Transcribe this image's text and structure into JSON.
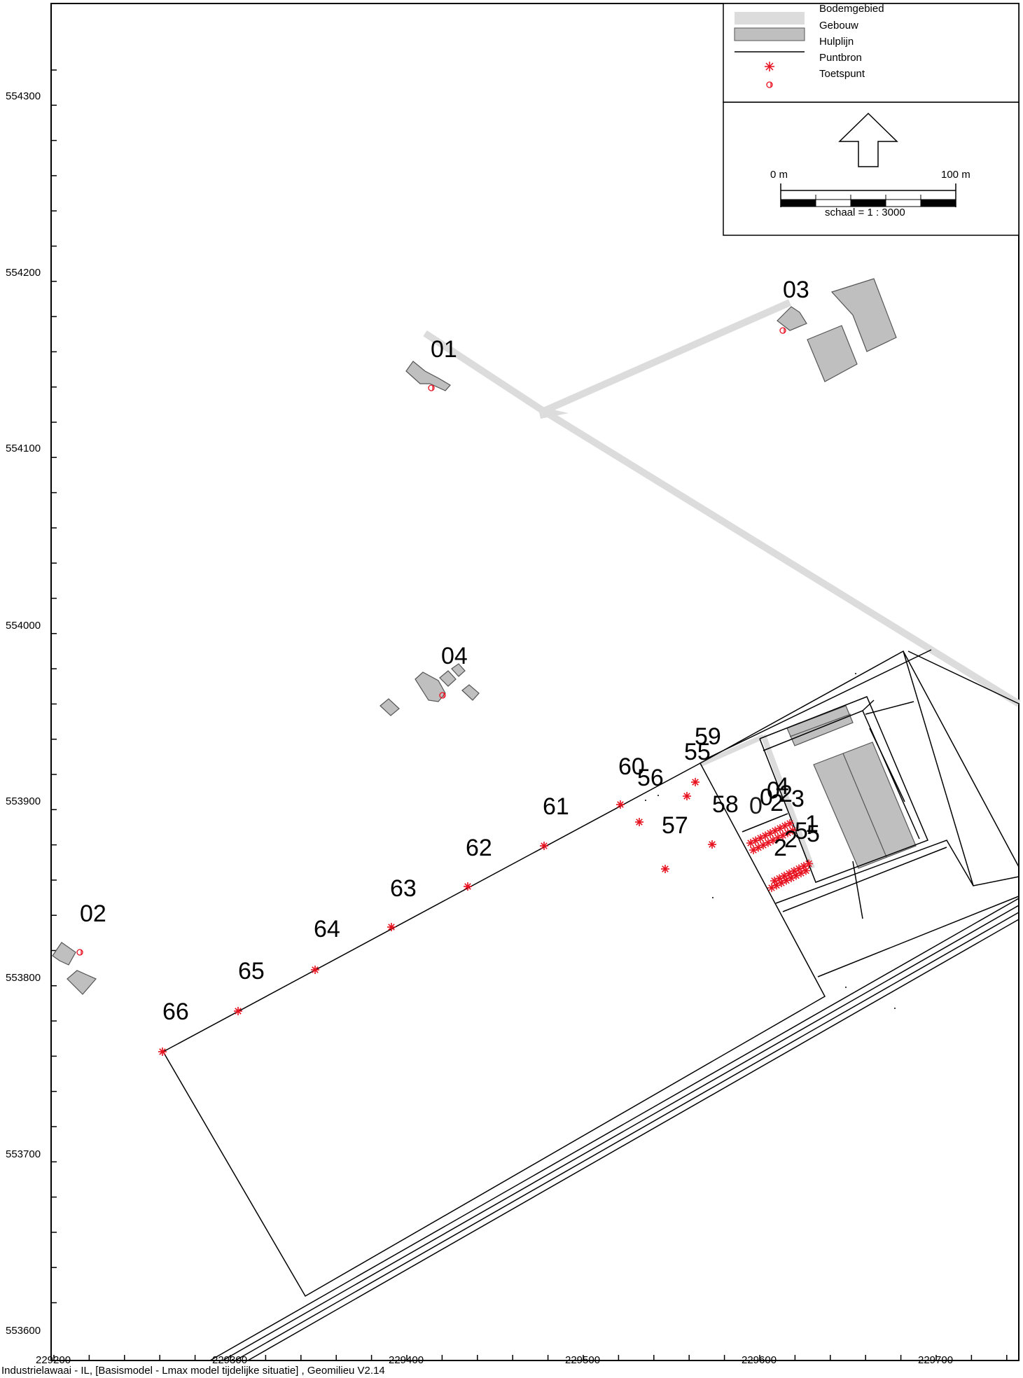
{
  "legend": {
    "items": [
      {
        "label": "Bodemgebied",
        "symbol": "bodemgebied"
      },
      {
        "label": "Gebouw",
        "symbol": "gebouw"
      },
      {
        "label": "Hulplijn",
        "symbol": "hulplijn"
      },
      {
        "label": "Puntbron",
        "symbol": "asterisk-icon"
      },
      {
        "label": "Toetspunt",
        "symbol": "receptor-icon"
      }
    ],
    "colors": {
      "bodemgebied": "#dcdcdc",
      "gebouw": "#bfbfbf",
      "puntbron": "#e8101e"
    }
  },
  "scalebar": {
    "left_label": "0 m",
    "right_label": "100 m",
    "scale_text": "schaal = 1 : 3000"
  },
  "axes": {
    "x_ticks": [
      "229200",
      "229300",
      "229400",
      "229500",
      "229600",
      "229700"
    ],
    "y_ticks": [
      "554300",
      "554200",
      "554100",
      "554000",
      "553900",
      "553800",
      "553700",
      "553600"
    ]
  },
  "receptor_labels": [
    "01",
    "02",
    "03",
    "04"
  ],
  "source_labels": [
    "55",
    "56",
    "57",
    "58",
    "59",
    "60",
    "61",
    "62",
    "63",
    "64",
    "65",
    "66"
  ],
  "footer": "Industrielawaai - IL, [Basismodel - Lmax model tijdelijke situatie] , Geomilieu V2.14"
}
